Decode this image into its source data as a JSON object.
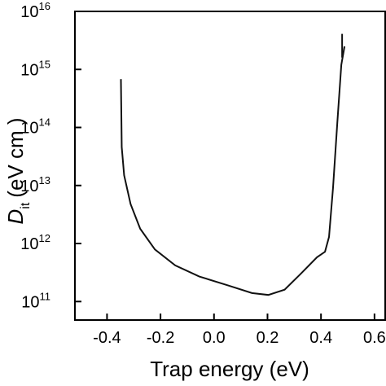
{
  "chart_data": {
    "type": "line",
    "xlabel": "Trap energy (eV)",
    "ylabel": {
      "main": "D",
      "sub": "it",
      "rest": "(eV  cm  )"
    },
    "series": [
      {
        "name": "Dit",
        "color": "#111111",
        "x": [
          -0.348,
          -0.345,
          -0.336,
          -0.312,
          -0.276,
          -0.221,
          -0.145,
          -0.055,
          0.052,
          0.142,
          0.203,
          0.264,
          0.324,
          0.385,
          0.415,
          0.43,
          0.445,
          0.461,
          0.476,
          0.488,
          null,
          0.479,
          0.479
        ],
        "values": [
          680000000000000.0,
          46000000000000.0,
          15000000000000.0,
          4800000000000.0,
          1800000000000.0,
          790000000000.0,
          420000000000.0,
          270000000000.0,
          190000000000.0,
          140000000000.0,
          130000000000.0,
          160000000000.0,
          300000000000.0,
          580000000000.0,
          720000000000.0,
          1300000000000.0,
          9100000000000.0,
          120000000000000.0,
          1200000000000000.0,
          2500000000000000.0,
          null,
          4100000000000000.0,
          1600000000000000.0
        ]
      }
    ],
    "xlim": [
      -0.52,
      0.64
    ],
    "ylim": [
      48000000000.0,
      1e+16
    ],
    "log_y": true,
    "xticks": [
      -0.4,
      -0.2,
      {
        "value": 0,
        "label": "0.0"
      },
      0.2,
      0.4,
      0.6
    ],
    "yticks": [
      {
        "value": 100000000000.0,
        "label": "10",
        "exponent": "11"
      },
      {
        "value": 1000000000000.0,
        "label": "10",
        "exponent": "12"
      },
      {
        "value": 10000000000000.0,
        "label": "10",
        "exponent": "13"
      },
      {
        "value": 100000000000000.0,
        "label": "10",
        "exponent": "14"
      },
      {
        "value": 1000000000000000.0,
        "label": "10",
        "exponent": "15"
      },
      {
        "value": 1e+16,
        "label": "10",
        "exponent": "16"
      }
    ]
  }
}
